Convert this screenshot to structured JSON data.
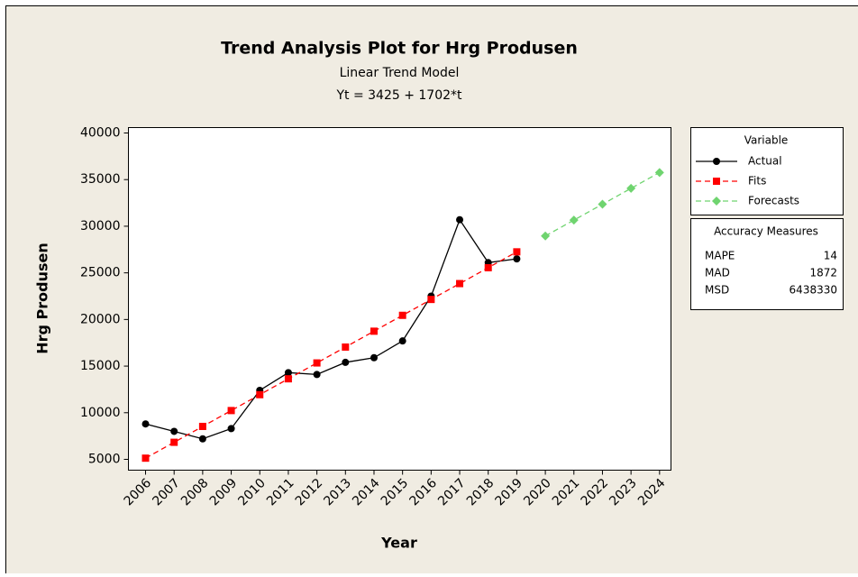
{
  "chart_data": {
    "type": "line",
    "title": "Trend Analysis Plot for Hrg Produsen",
    "subtitle": "Linear Trend Model",
    "equation": "Yt = 3425 + 1702*t",
    "x_label": "Year",
    "y_label": "Hrg Produsen",
    "x": [
      2006,
      2007,
      2008,
      2009,
      2010,
      2011,
      2012,
      2013,
      2014,
      2015,
      2016,
      2017,
      2018,
      2019,
      2020,
      2021,
      2022,
      2023,
      2024
    ],
    "series": [
      {
        "name": "Actual",
        "color": "#000000",
        "marker": "circle",
        "dashed": false,
        "values": [
          8800,
          8000,
          7200,
          8300,
          12400,
          14300,
          14100,
          15400,
          15900,
          17700,
          22500,
          30700,
          26100,
          26500,
          null,
          null,
          null,
          null,
          null
        ]
      },
      {
        "name": "Fits",
        "color": "#ff0000",
        "marker": "square",
        "dashed": true,
        "values": [
          5127,
          6829,
          8531,
          10233,
          11935,
          13637,
          15339,
          17041,
          18743,
          20445,
          22147,
          23849,
          25551,
          27253,
          null,
          null,
          null,
          null,
          null
        ]
      },
      {
        "name": "Forecasts",
        "color": "#6fd46f",
        "marker": "diamond",
        "dashed": true,
        "values": [
          null,
          null,
          null,
          null,
          null,
          null,
          null,
          null,
          null,
          null,
          null,
          null,
          null,
          null,
          28955,
          30657,
          32359,
          34061,
          35763
        ]
      }
    ],
    "xlim": [
      2005.4,
      2024.4
    ],
    "xticks": [
      2006,
      2007,
      2008,
      2009,
      2010,
      2011,
      2012,
      2013,
      2014,
      2015,
      2016,
      2017,
      2018,
      2019,
      2020,
      2021,
      2022,
      2023,
      2024
    ],
    "ylim": [
      3840,
      40580
    ],
    "yticks": [
      5000,
      10000,
      15000,
      20000,
      25000,
      30000,
      35000,
      40000
    ],
    "grid": false,
    "legend_title": "Variable",
    "accuracy_measures": {
      "title": "Accuracy Measures",
      "rows": [
        [
          "MAPE",
          14
        ],
        [
          "MAD",
          1872
        ],
        [
          "MSD",
          6438330
        ]
      ]
    }
  }
}
